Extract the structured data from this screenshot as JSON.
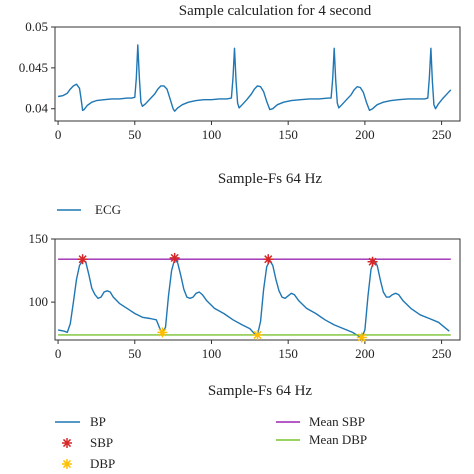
{
  "chart_data": [
    {
      "type": "line",
      "title": "Sample calculation for 4 second",
      "xlabel": "Sample-Fs 64 Hz",
      "ylabel": "",
      "xlim": [
        -2,
        262
      ],
      "ylim": [
        0.0385,
        0.05
      ],
      "x_ticks": [
        0,
        50,
        100,
        150,
        200,
        250
      ],
      "y_ticks": [
        0.04,
        0.045,
        0.05
      ],
      "x_tick_labels": [
        "0",
        "50",
        "100",
        "150",
        "200",
        "250"
      ],
      "y_tick_labels": [
        "0.04",
        "0.045",
        "0.05"
      ],
      "grid": false,
      "legend_position": "below",
      "series": [
        {
          "name": "ECG",
          "color": "#1f77b4",
          "points": [
            [
              0,
              0.0415
            ],
            [
              3,
              0.0416
            ],
            [
              6,
              0.0419
            ],
            [
              8,
              0.0424
            ],
            [
              10,
              0.0428
            ],
            [
              12,
              0.043
            ],
            [
              14,
              0.0425
            ],
            [
              15,
              0.0412
            ],
            [
              16,
              0.0398
            ],
            [
              17,
              0.0399
            ],
            [
              19,
              0.0404
            ],
            [
              22,
              0.0408
            ],
            [
              25,
              0.041
            ],
            [
              30,
              0.0411
            ],
            [
              35,
              0.0412
            ],
            [
              40,
              0.0412
            ],
            [
              45,
              0.0413
            ],
            [
              48,
              0.0413
            ],
            [
              50,
              0.0414
            ],
            [
              51,
              0.0437
            ],
            [
              52,
              0.0478
            ],
            [
              53,
              0.0437
            ],
            [
              54,
              0.0408
            ],
            [
              55,
              0.0403
            ],
            [
              57,
              0.0406
            ],
            [
              60,
              0.0412
            ],
            [
              63,
              0.0418
            ],
            [
              65,
              0.0424
            ],
            [
              67,
              0.0428
            ],
            [
              69,
              0.0428
            ],
            [
              71,
              0.0424
            ],
            [
              73,
              0.0412
            ],
            [
              75,
              0.04
            ],
            [
              76,
              0.0397
            ],
            [
              78,
              0.0401
            ],
            [
              81,
              0.0405
            ],
            [
              85,
              0.0408
            ],
            [
              90,
              0.041
            ],
            [
              95,
              0.0411
            ],
            [
              100,
              0.0411
            ],
            [
              105,
              0.0412
            ],
            [
              110,
              0.0412
            ],
            [
              113,
              0.0413
            ],
            [
              114,
              0.0438
            ],
            [
              115,
              0.0474
            ],
            [
              116,
              0.0435
            ],
            [
              117,
              0.0407
            ],
            [
              118,
              0.0401
            ],
            [
              120,
              0.0405
            ],
            [
              123,
              0.0411
            ],
            [
              126,
              0.0418
            ],
            [
              128,
              0.0424
            ],
            [
              130,
              0.0428
            ],
            [
              132,
              0.0427
            ],
            [
              134,
              0.0421
            ],
            [
              136,
              0.0409
            ],
            [
              138,
              0.0399
            ],
            [
              140,
              0.04
            ],
            [
              143,
              0.0405
            ],
            [
              147,
              0.0408
            ],
            [
              152,
              0.041
            ],
            [
              158,
              0.0411
            ],
            [
              164,
              0.0412
            ],
            [
              170,
              0.0412
            ],
            [
              176,
              0.0413
            ],
            [
              178,
              0.0413
            ],
            [
              179,
              0.0437
            ],
            [
              180,
              0.0474
            ],
            [
              181,
              0.0435
            ],
            [
              182,
              0.0407
            ],
            [
              183,
              0.0401
            ],
            [
              185,
              0.0405
            ],
            [
              188,
              0.0411
            ],
            [
              191,
              0.0417
            ],
            [
              193,
              0.0423
            ],
            [
              195,
              0.0427
            ],
            [
              197,
              0.0426
            ],
            [
              199,
              0.042
            ],
            [
              201,
              0.0408
            ],
            [
              203,
              0.0398
            ],
            [
              205,
              0.04
            ],
            [
              208,
              0.0405
            ],
            [
              212,
              0.0408
            ],
            [
              217,
              0.041
            ],
            [
              222,
              0.0411
            ],
            [
              228,
              0.0412
            ],
            [
              234,
              0.0412
            ],
            [
              239,
              0.0412
            ],
            [
              241,
              0.0413
            ],
            [
              242,
              0.0437
            ],
            [
              243,
              0.0474
            ],
            [
              244,
              0.0433
            ],
            [
              245,
              0.0405
            ],
            [
              246,
              0.04
            ],
            [
              248,
              0.0406
            ],
            [
              251,
              0.0413
            ],
            [
              254,
              0.0419
            ],
            [
              256,
              0.0423
            ]
          ]
        }
      ]
    },
    {
      "type": "line",
      "title": "",
      "xlabel": "Sample-Fs 64 Hz",
      "ylabel": "",
      "xlim": [
        -2,
        262
      ],
      "ylim": [
        70,
        150
      ],
      "x_ticks": [
        0,
        50,
        100,
        150,
        200,
        250
      ],
      "y_ticks": [
        100,
        150
      ],
      "x_tick_labels": [
        "0",
        "50",
        "100",
        "150",
        "200",
        "250"
      ],
      "y_tick_labels": [
        "100",
        "150"
      ],
      "grid": false,
      "legend_position": "below",
      "series": [
        {
          "name": "BP",
          "color": "#1f77b4",
          "marker": "line",
          "points": [
            [
              0,
              78
            ],
            [
              4,
              77
            ],
            [
              6,
              76
            ],
            [
              8,
              83
            ],
            [
              10,
              100
            ],
            [
              12,
              118
            ],
            [
              14,
              129
            ],
            [
              16,
              133
            ],
            [
              18,
              132
            ],
            [
              20,
              122
            ],
            [
              22,
              111
            ],
            [
              24,
              106
            ],
            [
              26,
              103
            ],
            [
              28,
              104
            ],
            [
              30,
              108
            ],
            [
              32,
              109
            ],
            [
              34,
              108
            ],
            [
              36,
              104
            ],
            [
              40,
              99
            ],
            [
              45,
              95
            ],
            [
              50,
              91
            ],
            [
              55,
              88
            ],
            [
              60,
              87
            ],
            [
              64,
              86
            ],
            [
              67,
              77
            ],
            [
              68,
              76
            ],
            [
              70,
              80
            ],
            [
              72,
              105
            ],
            [
              74,
              125
            ],
            [
              76,
              134
            ],
            [
              78,
              131
            ],
            [
              80,
              121
            ],
            [
              82,
              110
            ],
            [
              84,
              104
            ],
            [
              86,
              103
            ],
            [
              88,
              104
            ],
            [
              90,
              107
            ],
            [
              92,
              108
            ],
            [
              94,
              106
            ],
            [
              97,
              101
            ],
            [
              102,
              95
            ],
            [
              108,
              91
            ],
            [
              114,
              86
            ],
            [
              120,
              82
            ],
            [
              125,
              79
            ],
            [
              128,
              75
            ],
            [
              130,
              74
            ],
            [
              132,
              85
            ],
            [
              134,
              110
            ],
            [
              136,
              128
            ],
            [
              138,
              133
            ],
            [
              140,
              129
            ],
            [
              142,
              118
            ],
            [
              144,
              109
            ],
            [
              146,
              104
            ],
            [
              148,
              103
            ],
            [
              150,
              105
            ],
            [
              152,
              107
            ],
            [
              154,
              106
            ],
            [
              157,
              101
            ],
            [
              162,
              95
            ],
            [
              168,
              91
            ],
            [
              174,
              86
            ],
            [
              180,
              82
            ],
            [
              186,
              79
            ],
            [
              192,
              76
            ],
            [
              196,
              73
            ],
            [
              198,
              72
            ],
            [
              200,
              78
            ],
            [
              202,
              105
            ],
            [
              204,
              126
            ],
            [
              206,
              133
            ],
            [
              208,
              129
            ],
            [
              210,
              118
            ],
            [
              212,
              108
            ],
            [
              214,
              104
            ],
            [
              216,
              104
            ],
            [
              218,
              106
            ],
            [
              220,
              107
            ],
            [
              222,
              106
            ],
            [
              225,
              101
            ],
            [
              230,
              95
            ],
            [
              236,
              90
            ],
            [
              242,
              87
            ],
            [
              248,
              84
            ],
            [
              252,
              80
            ],
            [
              255,
              77
            ]
          ]
        },
        {
          "name": "SBP",
          "color": "#d62728",
          "marker": "asterisk",
          "points": [
            [
              16,
              134
            ],
            [
              76,
              135
            ],
            [
              137,
              134
            ],
            [
              205,
              132
            ]
          ]
        },
        {
          "name": "DBP",
          "color": "#ffbf00",
          "marker": "asterisk",
          "points": [
            [
              68,
              76
            ],
            [
              130,
              74
            ],
            [
              198,
              72
            ]
          ]
        },
        {
          "name": "Mean SBP",
          "color": "#9c27b0",
          "marker": "line",
          "points": [
            [
              0,
              134
            ],
            [
              256,
              134
            ]
          ]
        },
        {
          "name": "Mean DBP",
          "color": "#7cc230",
          "marker": "line",
          "points": [
            [
              0,
              74
            ],
            [
              256,
              74
            ]
          ]
        }
      ]
    }
  ]
}
